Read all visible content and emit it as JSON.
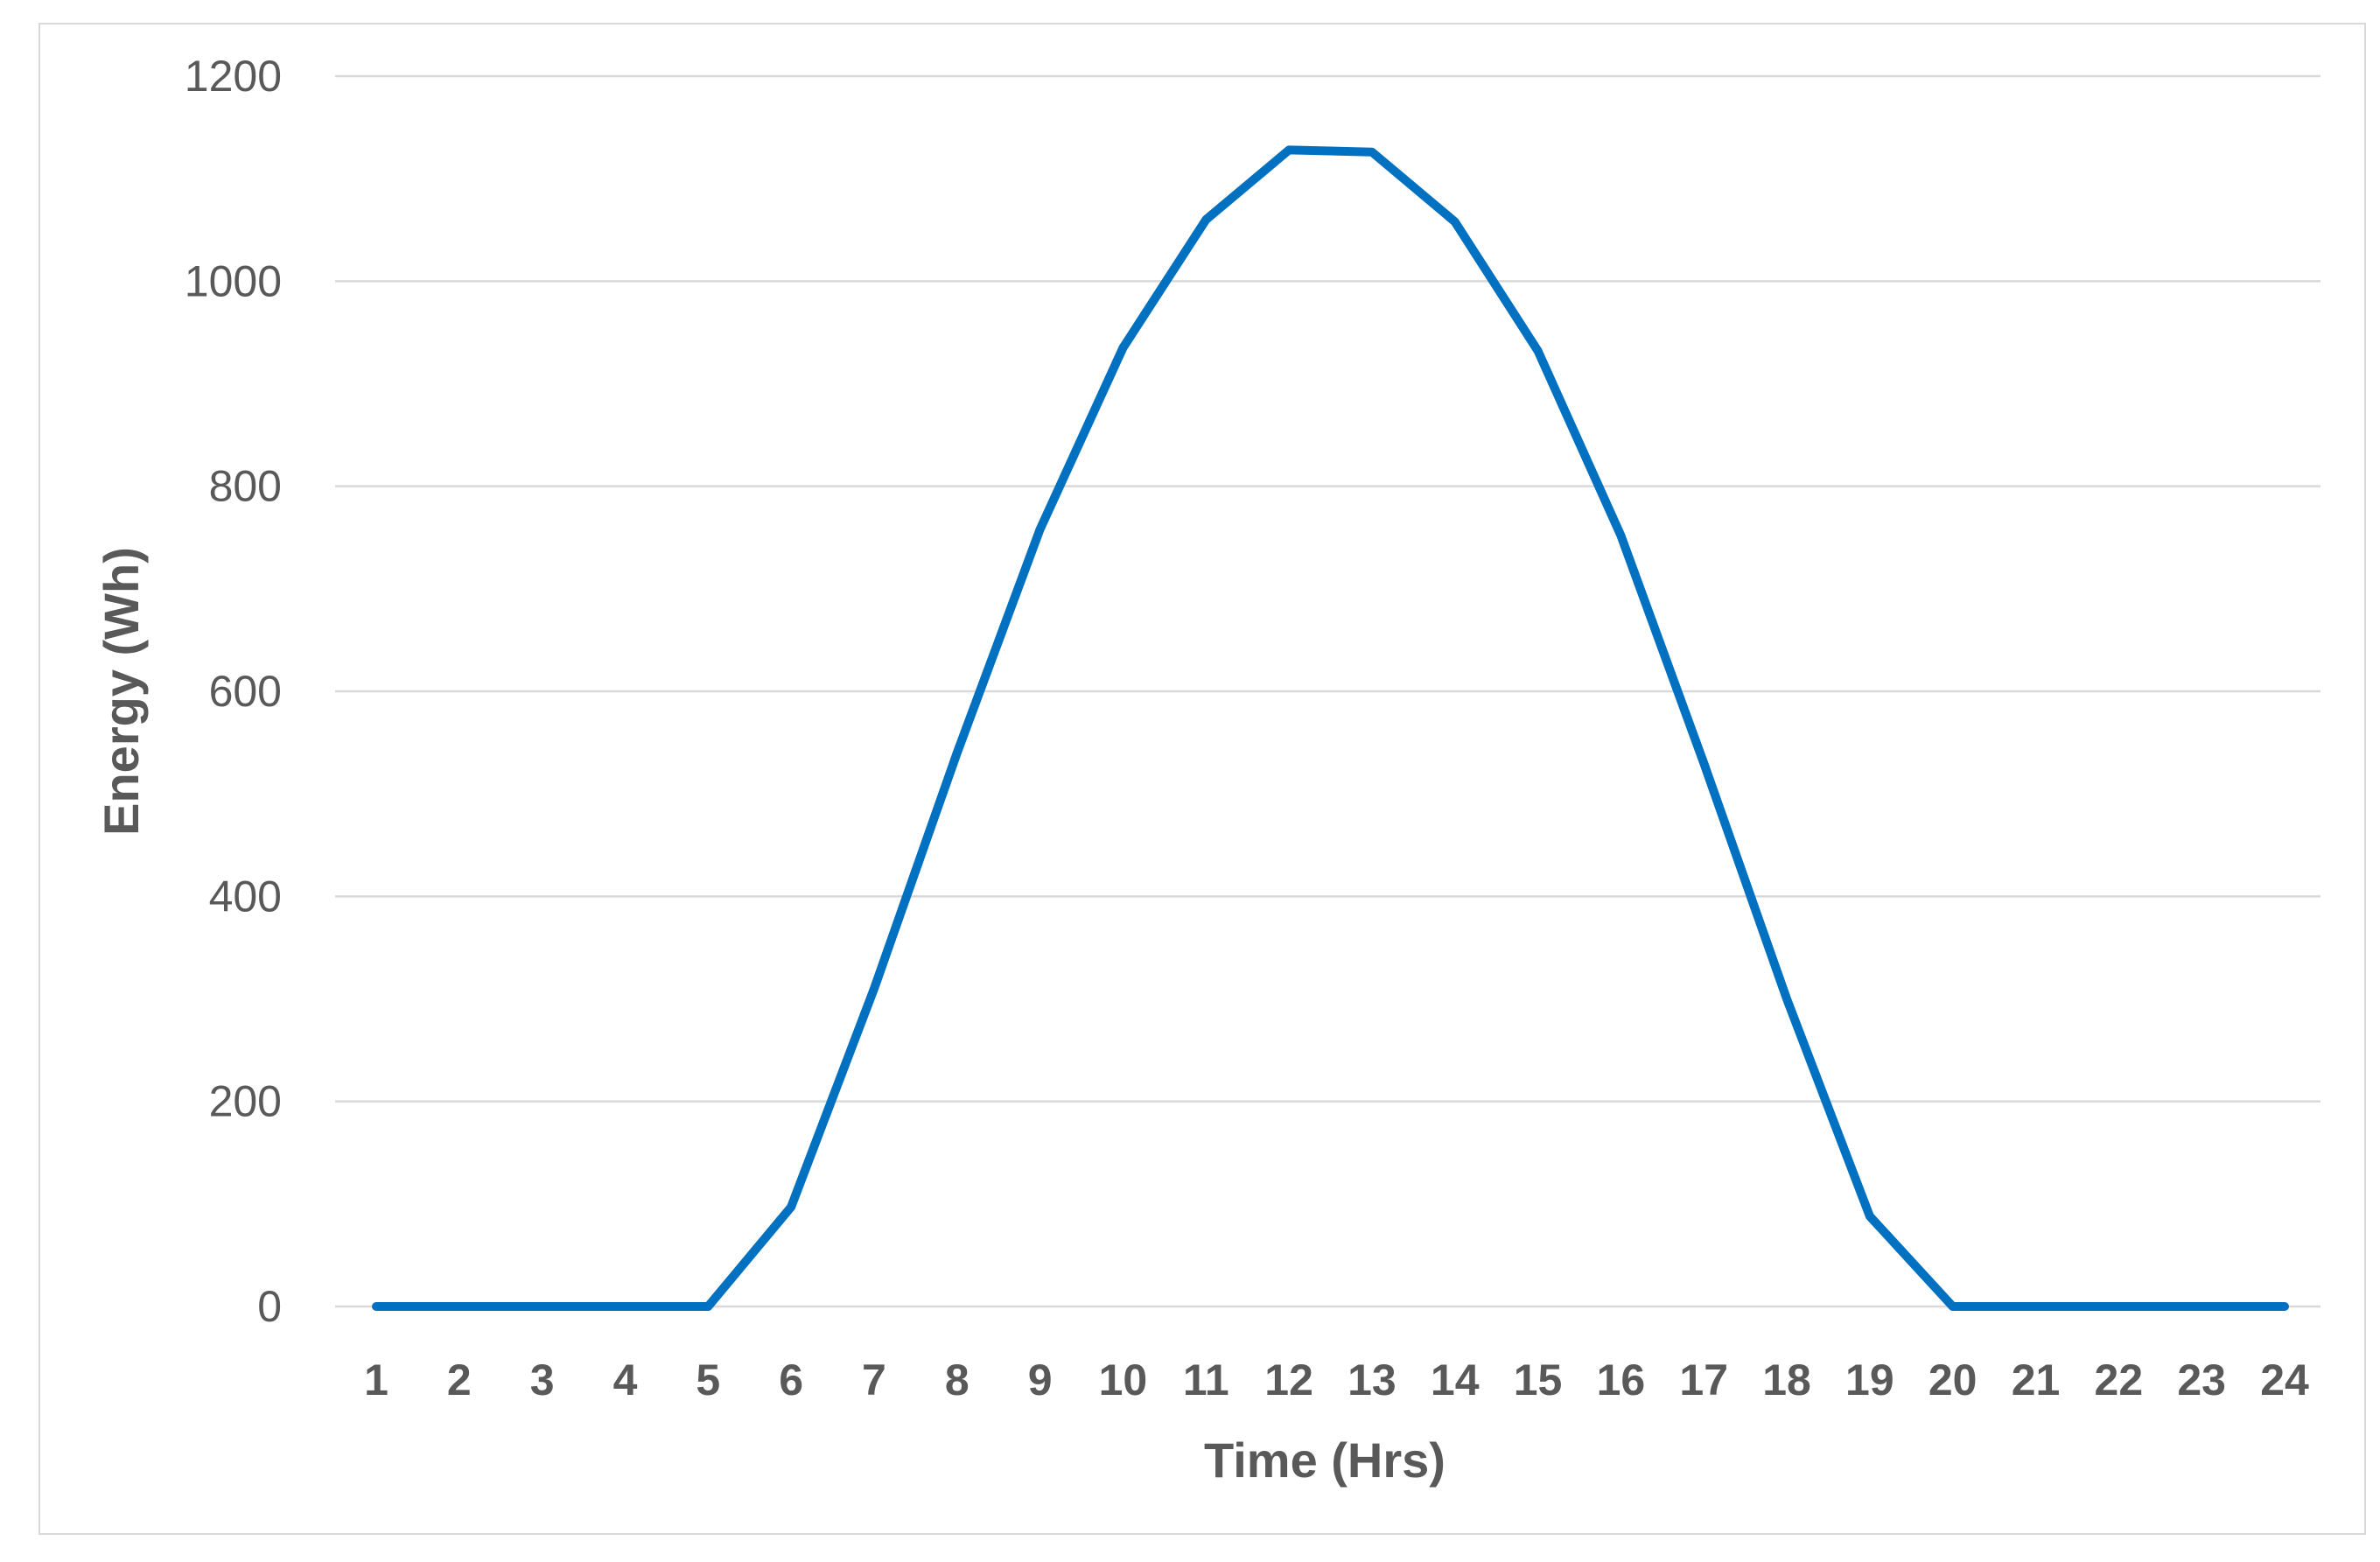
{
  "chart_data": {
    "type": "line",
    "title": "",
    "xlabel": "Time (Hrs)",
    "ylabel": "Energy (Wh)",
    "categories": [
      "1",
      "2",
      "3",
      "4",
      "5",
      "6",
      "7",
      "8",
      "9",
      "10",
      "11",
      "12",
      "13",
      "14",
      "15",
      "16",
      "17",
      "18",
      "19",
      "20",
      "21",
      "22",
      "23",
      "24"
    ],
    "series": [
      {
        "values": [
          0,
          0,
          0,
          0,
          0,
          97,
          310,
          540,
          758,
          935,
          1060,
          1128,
          1126,
          1058,
          932,
          752,
          530,
          300,
          88,
          0,
          0,
          0,
          0,
          0
        ],
        "color": "#0070c0"
      }
    ],
    "ylim": [
      0,
      1200
    ],
    "yticks": [
      0,
      200,
      400,
      600,
      800,
      1000,
      1200
    ],
    "grid": true,
    "legend": "none"
  }
}
